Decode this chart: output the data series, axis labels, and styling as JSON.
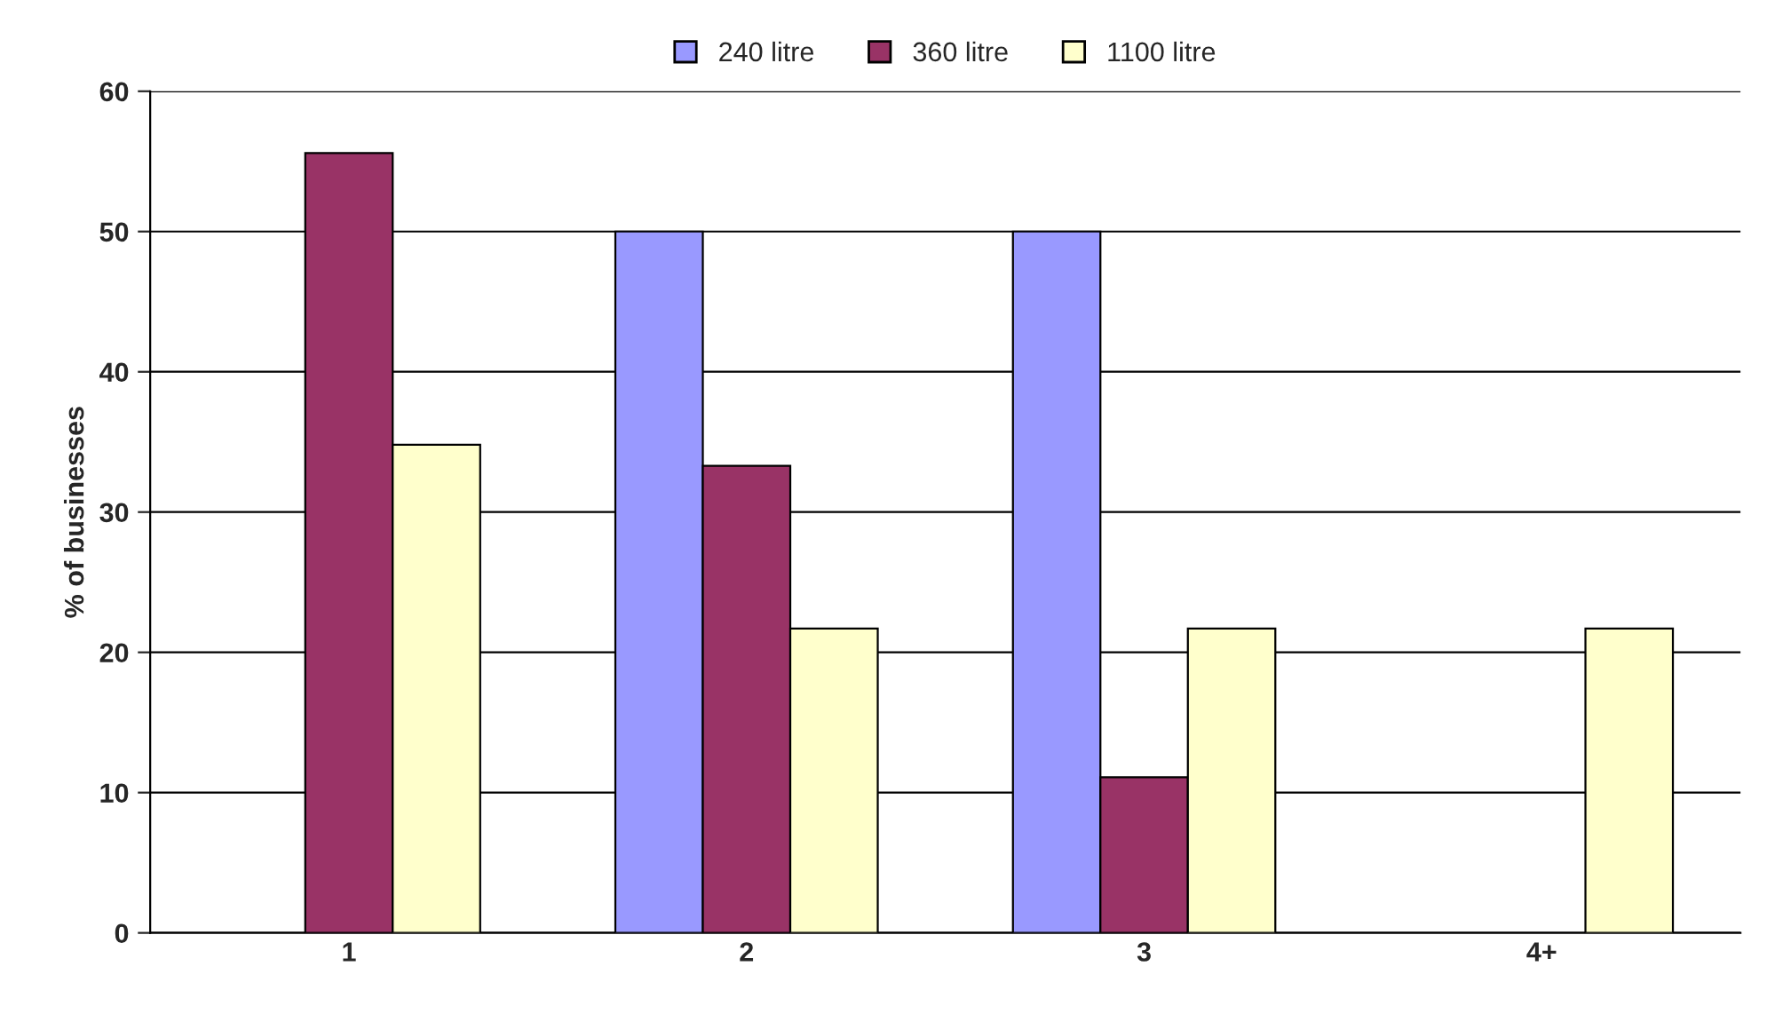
{
  "chart_data": {
    "type": "bar",
    "ylabel": "% of businesses",
    "categories": [
      "1",
      "2",
      "3",
      "4+"
    ],
    "series": [
      {
        "name": "240 litre",
        "color": "#9999ff",
        "values": [
          0,
          50,
          50,
          0
        ]
      },
      {
        "name": "360 litre",
        "color": "#993366",
        "values": [
          55.6,
          33.3,
          11.1,
          0
        ]
      },
      {
        "name": "1100 litre",
        "color": "#ffffcc",
        "values": [
          34.8,
          21.7,
          21.7,
          21.7
        ]
      }
    ],
    "ylim": [
      0,
      60
    ],
    "yticks": [
      0,
      10,
      20,
      30,
      40,
      50,
      60
    ],
    "grid": "y",
    "legend": "top"
  }
}
